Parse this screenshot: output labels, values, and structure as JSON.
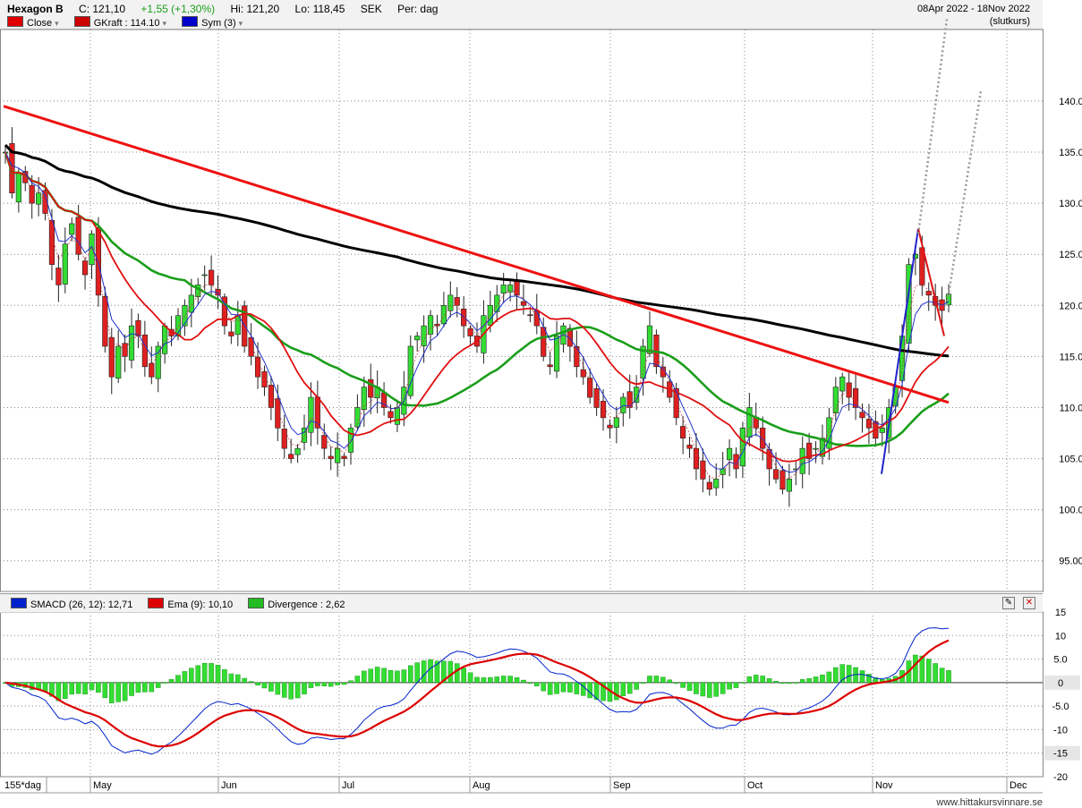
{
  "header": {
    "ticker": "Hexagon B",
    "close": "C: 121,10",
    "change": "+1,55 (+1,30%)",
    "high": "Hi: 121,20",
    "low": "Lo: 118,45",
    "currency": "SEK",
    "period": "Per: dag",
    "date_range": "08Apr 2022 - 18Nov 2022",
    "price_type": "(slutkurs)",
    "legend": [
      {
        "label": "Close",
        "color": "#e00000"
      },
      {
        "label": "GKraft : 114.10",
        "color": "#cc0000"
      },
      {
        "label": "Sym (3)",
        "color": "#0000cc"
      }
    ]
  },
  "indicator_header": {
    "items": [
      {
        "label": "SMACD (26, 12): 12,71",
        "color": "#0022cc"
      },
      {
        "label": "Ema (9): 10,10",
        "color": "#dd0000"
      },
      {
        "label": "Divergence : 2,62",
        "color": "#22bb22"
      }
    ]
  },
  "footer": {
    "period_label": "155*dag",
    "credit": "www.hittakursvinnare.se"
  },
  "colors": {
    "up": "#33dd33",
    "down": "#e02020",
    "ma_long": "#000000",
    "ma_mid": "#1a9e1a",
    "ma_short": "#e01010",
    "sym": "#2233cc",
    "trend": "#ee1111"
  },
  "chart_data": [
    {
      "type": "candlestick",
      "title": "Hexagon B",
      "ylim": [
        92,
        147
      ],
      "y_ticks": [
        "140.0",
        "135.0",
        "130.0",
        "125.0",
        "120.0",
        "115.0",
        "110.0",
        "105.0",
        "100.0",
        "95.00"
      ],
      "x_labels": [
        "May",
        "Jun",
        "Jul",
        "Aug",
        "Sep",
        "Oct",
        "Nov",
        "Dec"
      ],
      "close_series": [
        135,
        131,
        133,
        132,
        130,
        131,
        129,
        124,
        122,
        126,
        128,
        125,
        123,
        127,
        121,
        116,
        113,
        116,
        115,
        118,
        117,
        114,
        113,
        116,
        118,
        117,
        119,
        120,
        121,
        122,
        123,
        122,
        121,
        118,
        117,
        119,
        116,
        115,
        113,
        112,
        110,
        108,
        106,
        105,
        106,
        108,
        111,
        108,
        106,
        105,
        106,
        105,
        108,
        110,
        112,
        111,
        112,
        110,
        109,
        110,
        112,
        116,
        117,
        118,
        119,
        118,
        120,
        121,
        120,
        118,
        117,
        116,
        119,
        120,
        121,
        122,
        122,
        121,
        120,
        119,
        118,
        115,
        114,
        117,
        118,
        116,
        114,
        113,
        111,
        110,
        109,
        108,
        109,
        111,
        110,
        112,
        116,
        118,
        114,
        113,
        111,
        109,
        107,
        106,
        104,
        103,
        102,
        103,
        104,
        106,
        104,
        108,
        110,
        108,
        106,
        104,
        103,
        102,
        103,
        104,
        106,
        105,
        106,
        107,
        109,
        112,
        113,
        111,
        110,
        109,
        108,
        107,
        108,
        110,
        112,
        117,
        124,
        125,
        122,
        121,
        120,
        119.5,
        121.1
      ]
    },
    {
      "type": "macd",
      "ylim": [
        -20,
        15
      ],
      "y_ticks": [
        "15",
        "10",
        "5.0",
        "0",
        "-5.0",
        "-10",
        "-15",
        "-20"
      ],
      "series": [
        {
          "name": "SMACD (26, 12)",
          "last": 12.71
        },
        {
          "name": "Ema (9)",
          "last": 10.1
        },
        {
          "name": "Divergence",
          "last": 2.62
        }
      ]
    }
  ]
}
